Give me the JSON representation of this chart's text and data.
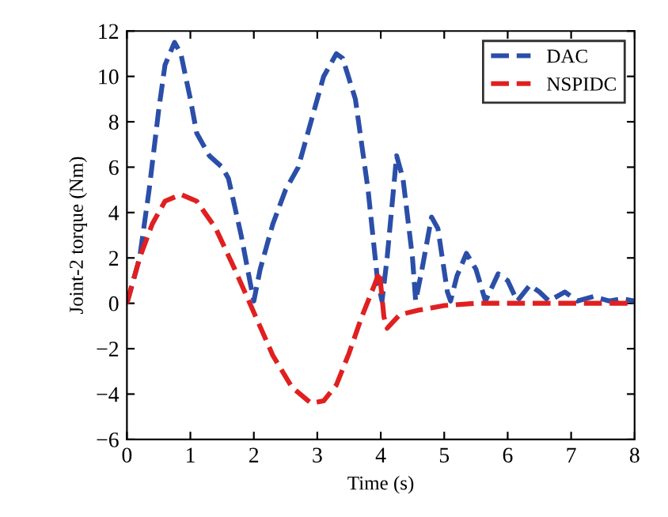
{
  "chart_data": {
    "type": "line",
    "xlabel": "Time (s)",
    "ylabel": "Joint-2 torque (Nm)",
    "xlim": [
      0,
      8
    ],
    "ylim": [
      -6,
      12
    ],
    "xticks": [
      0,
      1,
      2,
      3,
      4,
      5,
      6,
      7,
      8
    ],
    "yticks": [
      -6,
      -4,
      -2,
      0,
      2,
      4,
      6,
      8,
      10,
      12
    ],
    "grid": false,
    "legend": "top right",
    "line_style": "dashed",
    "marker": "none",
    "series": [
      {
        "name": "DAC",
        "color": "#2b4fa8",
        "x": [
          0,
          0.2,
          0.35,
          0.5,
          0.6,
          0.75,
          0.85,
          1.0,
          1.1,
          1.3,
          1.5,
          1.6,
          1.8,
          1.95,
          2.0,
          2.1,
          2.3,
          2.5,
          2.7,
          2.9,
          3.1,
          3.3,
          3.4,
          3.6,
          3.8,
          3.95,
          4.02,
          4.1,
          4.25,
          4.35,
          4.5,
          4.55,
          4.65,
          4.8,
          4.9,
          5.05,
          5.1,
          5.2,
          5.35,
          5.5,
          5.65,
          5.85,
          6.0,
          6.15,
          6.35,
          6.5,
          6.65,
          6.9,
          7.1,
          7.35,
          7.6,
          7.8,
          8
        ],
        "values": [
          0,
          2,
          5,
          8.5,
          10.5,
          11.5,
          11,
          9,
          7.5,
          6.5,
          6,
          5.5,
          3,
          0.8,
          0.1,
          1.5,
          3.5,
          5,
          6,
          8,
          10,
          11,
          10.8,
          9,
          5,
          1,
          0.1,
          2,
          6.5,
          5.5,
          2,
          0.1,
          1.5,
          3.8,
          3.3,
          0.5,
          0.1,
          1.2,
          2.2,
          1.5,
          0.1,
          1.3,
          1,
          0.1,
          0.8,
          0.5,
          0.1,
          0.5,
          0.1,
          0.3,
          0.1,
          0.2,
          0.1
        ]
      },
      {
        "name": "NSPIDC",
        "color": "#e02020",
        "x": [
          0,
          0.2,
          0.4,
          0.6,
          0.85,
          1.1,
          1.4,
          1.7,
          2.0,
          2.3,
          2.6,
          2.9,
          3.1,
          3.3,
          3.5,
          3.7,
          3.9,
          3.98,
          4.05,
          4.1,
          4.3,
          4.6,
          5,
          5.5,
          8
        ],
        "values": [
          0,
          2,
          3.5,
          4.5,
          4.8,
          4.5,
          3.3,
          1.5,
          -0.4,
          -2.3,
          -3.7,
          -4.4,
          -4.3,
          -3.6,
          -2.2,
          -0.6,
          0.8,
          1.4,
          -0.6,
          -1.1,
          -0.5,
          -0.3,
          -0.1,
          0,
          0
        ]
      }
    ]
  }
}
